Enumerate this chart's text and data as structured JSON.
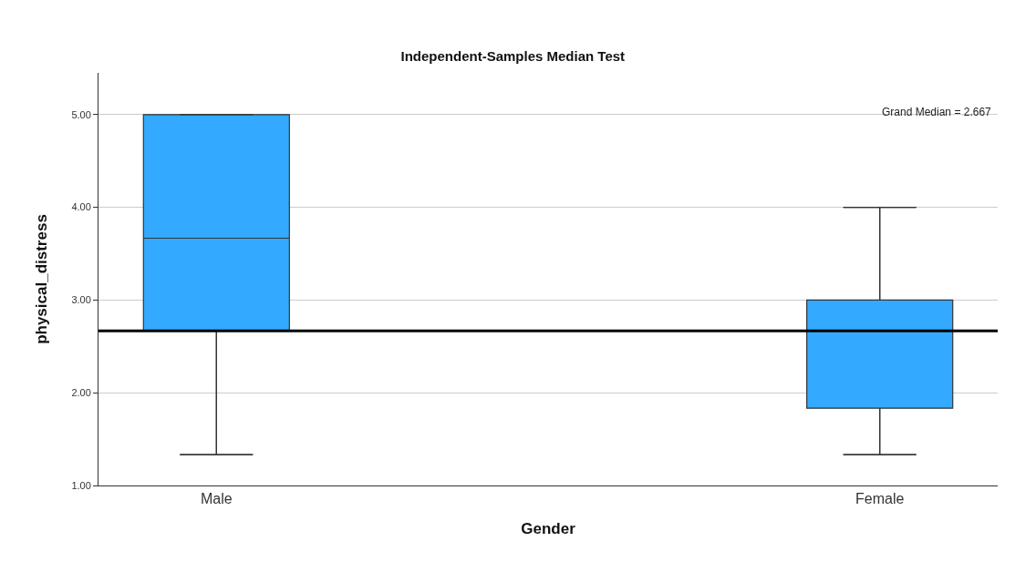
{
  "chart_data": {
    "type": "box",
    "title": "Independent-Samples Median Test",
    "xlabel": "Gender",
    "ylabel": "physical_distress",
    "categories": [
      "Male",
      "Female"
    ],
    "boxes": [
      {
        "low": 1.333,
        "q1": 2.667,
        "median": 3.667,
        "q3": 5.0,
        "high": 5.0
      },
      {
        "low": 1.333,
        "q1": 1.833,
        "median": 2.667,
        "q3": 3.0,
        "high": 4.0
      }
    ],
    "color": "#33aaff",
    "ylim": [
      1,
      5.45
    ],
    "yticks": [
      {
        "value": 1,
        "label": "1.00"
      },
      {
        "value": 2,
        "label": "2.00"
      },
      {
        "value": 3,
        "label": "3.00"
      },
      {
        "value": 4,
        "label": "4.00"
      },
      {
        "value": 5,
        "label": "5.00"
      }
    ],
    "grid": "y",
    "ref_lines": [
      {
        "axis": "y",
        "value": 2.667,
        "label": "Grand Median = 2.667",
        "color": "#000000"
      }
    ]
  }
}
